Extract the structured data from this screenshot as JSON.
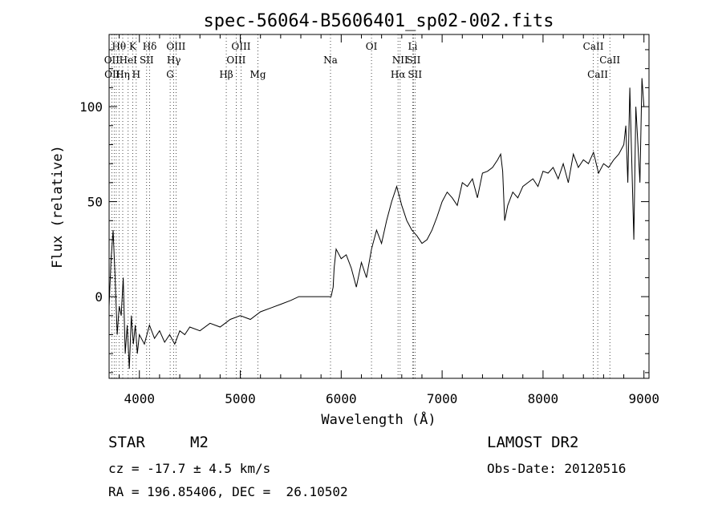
{
  "chart_data": {
    "type": "line",
    "title": "spec-56064-B5606401_sp02-002.fits",
    "xlabel": "Wavelength (Å)",
    "ylabel": "Flux (relative)",
    "xlim": [
      3700,
      9050
    ],
    "ylim": [
      -43,
      138
    ],
    "xticks": [
      4000,
      5000,
      6000,
      7000,
      8000,
      9000
    ],
    "yticks": [
      0,
      50,
      100
    ],
    "series": [
      {
        "x": [
          3700,
          3720,
          3740,
          3760,
          3780,
          3800,
          3820,
          3840,
          3860,
          3880,
          3900,
          3920,
          3940,
          3960,
          3980,
          4000,
          4050,
          4100,
          4150,
          4200,
          4250,
          4300,
          4350,
          4400,
          4450,
          4500,
          4600,
          4700,
          4800,
          4900,
          5000,
          5100,
          5200,
          5300,
          5400,
          5500,
          5580,
          5590,
          5900,
          5920,
          5930,
          5950,
          6000,
          6050,
          6100,
          6150,
          6200,
          6250,
          6300,
          6350,
          6400,
          6450,
          6500,
          6550,
          6600,
          6650,
          6700,
          6750,
          6800,
          6850,
          6900,
          6950,
          7000,
          7050,
          7100,
          7150,
          7200,
          7250,
          7300,
          7350,
          7400,
          7450,
          7500,
          7550,
          7580,
          7600,
          7620,
          7650,
          7700,
          7750,
          7800,
          7850,
          7900,
          7950,
          8000,
          8050,
          8100,
          8150,
          8200,
          8250,
          8300,
          8350,
          8400,
          8450,
          8500,
          8550,
          8600,
          8650,
          8700,
          8750,
          8800,
          8820,
          8840,
          8860,
          8880,
          8900,
          8920,
          8940,
          8960,
          8980,
          9000
        ],
        "y": [
          -5,
          20,
          35,
          10,
          -20,
          -5,
          -10,
          10,
          -30,
          -15,
          -38,
          -10,
          -25,
          -15,
          -30,
          -20,
          -25,
          -15,
          -22,
          -18,
          -24,
          -20,
          -25,
          -18,
          -20,
          -16,
          -18,
          -14,
          -16,
          -12,
          -10,
          -12,
          -8,
          -6,
          -4,
          -2,
          0,
          0,
          0,
          5,
          15,
          25,
          20,
          22,
          15,
          5,
          18,
          10,
          25,
          35,
          28,
          40,
          50,
          58,
          48,
          40,
          35,
          32,
          28,
          30,
          35,
          42,
          50,
          55,
          52,
          48,
          60,
          58,
          62,
          52,
          65,
          66,
          68,
          72,
          75,
          66,
          40,
          48,
          55,
          52,
          58,
          60,
          62,
          58,
          66,
          65,
          68,
          62,
          70,
          60,
          75,
          68,
          72,
          70,
          76,
          65,
          70,
          68,
          72,
          75,
          80,
          90,
          60,
          110,
          70,
          30,
          100,
          80,
          60,
          115,
          100
        ]
      }
    ],
    "line_labels": [
      {
        "text": "Hθ",
        "x": 3798,
        "row": 1
      },
      {
        "text": "OII",
        "x": 3727,
        "row": 2
      },
      {
        "text": "OII",
        "x": 3730,
        "row": 3
      },
      {
        "text": "K",
        "x": 3934,
        "row": 1
      },
      {
        "text": "HeI",
        "x": 3889,
        "row": 2
      },
      {
        "text": "Hη",
        "x": 3835,
        "row": 3
      },
      {
        "text": "H",
        "x": 3969,
        "row": 3
      },
      {
        "text": "Hδ",
        "x": 4102,
        "row": 1
      },
      {
        "text": "SII",
        "x": 4072,
        "row": 2
      },
      {
        "text": "OIII",
        "x": 4363,
        "row": 1
      },
      {
        "text": "Hγ",
        "x": 4341,
        "row": 2
      },
      {
        "text": "G",
        "x": 4305,
        "row": 3
      },
      {
        "text": "OIII",
        "x": 5007,
        "row": 1
      },
      {
        "text": "OIII",
        "x": 4959,
        "row": 2
      },
      {
        "text": "Hβ",
        "x": 4861,
        "row": 3
      },
      {
        "text": "Mg",
        "x": 5175,
        "row": 3
      },
      {
        "text": "Na",
        "x": 5894,
        "row": 2
      },
      {
        "text": "OI",
        "x": 6300,
        "row": 1
      },
      {
        "text": "Li",
        "x": 6708,
        "row": 1
      },
      {
        "text": "NII",
        "x": 6584,
        "row": 2
      },
      {
        "text": "SII",
        "x": 6717,
        "row": 2
      },
      {
        "text": "Hα",
        "x": 6563,
        "row": 3
      },
      {
        "text": "SII",
        "x": 6731,
        "row": 3
      },
      {
        "text": "CaII",
        "x": 8498,
        "row": 1
      },
      {
        "text": "CaII",
        "x": 8662,
        "row": 2
      },
      {
        "text": "CaII",
        "x": 8542,
        "row": 3
      }
    ],
    "line_markers": [
      3727,
      3750,
      3771,
      3798,
      3835,
      3889,
      3934,
      3969,
      4072,
      4102,
      4305,
      4341,
      4363,
      4861,
      4959,
      5007,
      5175,
      5894,
      6300,
      6563,
      6584,
      6708,
      6717,
      6731,
      8498,
      8542,
      8662
    ],
    "grid": false
  },
  "info": {
    "object_class": "STAR",
    "subclass": "M2",
    "redshift": "cz = -17.7 ± 4.5 km/s",
    "coords": "RA = 196.85406, DEC =  26.10502",
    "survey": "LAMOST DR2",
    "obs_date": "Obs-Date: 20120516"
  }
}
